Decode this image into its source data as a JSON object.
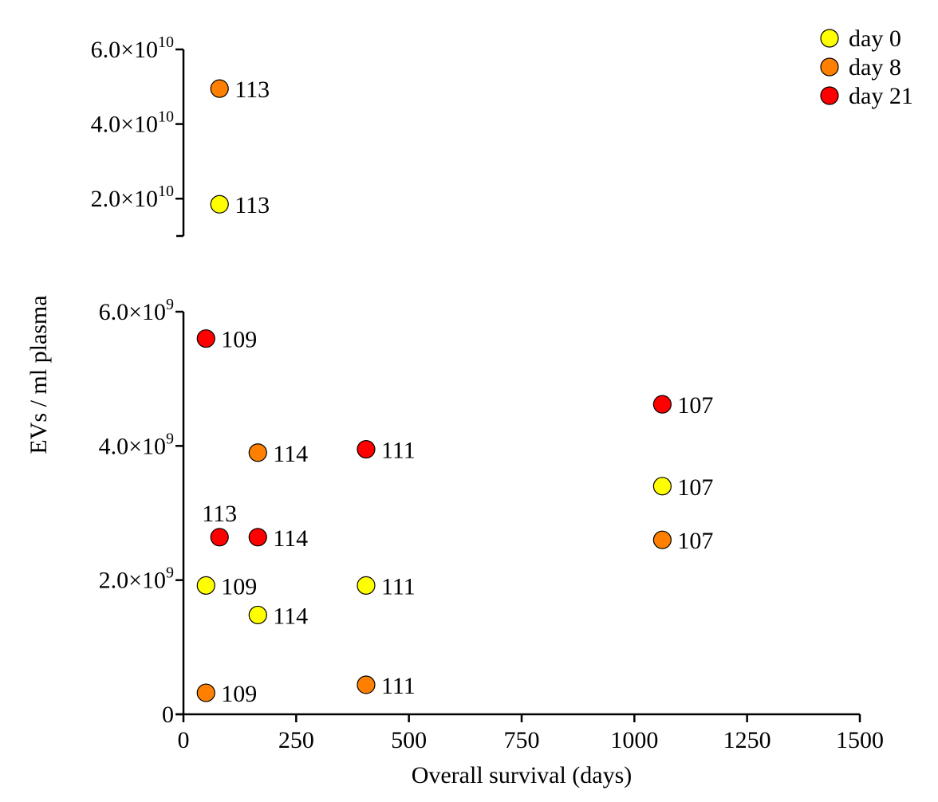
{
  "chart_data": {
    "type": "scatter",
    "title": "",
    "xlabel": "Overall survival (days)",
    "ylabel": "EVs / ml plasma",
    "axis_break": true,
    "xlim": [
      0,
      1500
    ],
    "x_ticks": [
      0,
      250,
      500,
      750,
      1000,
      1250,
      1500
    ],
    "x_tick_labels": [
      "0",
      "250",
      "500",
      "750",
      "1000",
      "1250",
      "1500"
    ],
    "lower_panel": {
      "ylim": [
        0,
        6000000000
      ],
      "y_ticks": [
        0,
        2000000000,
        4000000000,
        6000000000
      ],
      "y_tick_labels": [
        {
          "mantissa": "0",
          "exponent": ""
        },
        {
          "mantissa": "2.0×10",
          "exponent": "9"
        },
        {
          "mantissa": "4.0×10",
          "exponent": "9"
        },
        {
          "mantissa": "6.0×10",
          "exponent": "9"
        }
      ]
    },
    "upper_panel": {
      "ylim": [
        10000000000,
        60000000000
      ],
      "y_ticks": [
        20000000000,
        40000000000,
        60000000000
      ],
      "y_tick_labels": [
        {
          "mantissa": "2.0×10",
          "exponent": "10"
        },
        {
          "mantissa": "4.0×10",
          "exponent": "10"
        },
        {
          "mantissa": "6.0×10",
          "exponent": "10"
        }
      ]
    },
    "legend_position": "top-right",
    "series": [
      {
        "name": "day 0",
        "color": "#ffff00",
        "points": [
          {
            "x": 80,
            "y": 18500000000,
            "label": "113"
          },
          {
            "x": 50,
            "y": 1920000000,
            "label": "109"
          },
          {
            "x": 165,
            "y": 1480000000,
            "label": "114"
          },
          {
            "x": 405,
            "y": 1920000000,
            "label": "111"
          },
          {
            "x": 1062,
            "y": 3400000000,
            "label": "107"
          }
        ]
      },
      {
        "name": "day 8",
        "color": "#ff8000",
        "points": [
          {
            "x": 80,
            "y": 49500000000,
            "label": "113"
          },
          {
            "x": 50,
            "y": 320000000,
            "label": "109"
          },
          {
            "x": 165,
            "y": 3900000000,
            "label": "114"
          },
          {
            "x": 405,
            "y": 440000000,
            "label": "111"
          },
          {
            "x": 1062,
            "y": 2600000000,
            "label": "107"
          }
        ]
      },
      {
        "name": "day 21",
        "color": "#ff0000",
        "points": [
          {
            "x": 50,
            "y": 5600000000,
            "label": "109"
          },
          {
            "x": 80,
            "y": 2640000000,
            "label": "113",
            "label_pos": "above"
          },
          {
            "x": 165,
            "y": 2640000000,
            "label": "114"
          },
          {
            "x": 405,
            "y": 3950000000,
            "label": "111"
          },
          {
            "x": 1062,
            "y": 4620000000,
            "label": "107"
          }
        ]
      }
    ]
  }
}
